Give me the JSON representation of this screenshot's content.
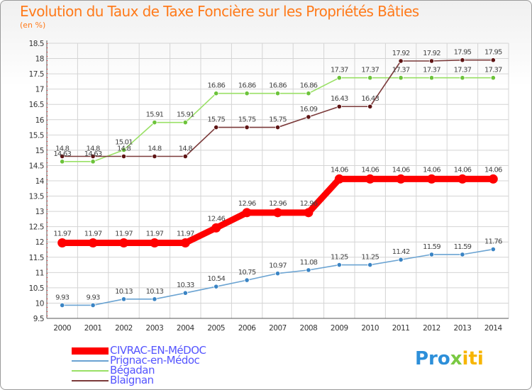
{
  "title": "Evolution du Taux de Taxe Foncière sur les Propriétés Bâties",
  "unit": "(en %)",
  "logo": {
    "p1": "Pro",
    "p2": "x",
    "p3": "iti"
  },
  "chart_data": {
    "type": "line",
    "title": "Evolution du Taux de Taxe Foncière sur les Propriétés Bâties",
    "ylabel": "(en %)",
    "xlabel": "",
    "x": [
      2000,
      2001,
      2002,
      2003,
      2004,
      2005,
      2006,
      2007,
      2008,
      2009,
      2010,
      2011,
      2012,
      2013,
      2014
    ],
    "ylim": [
      9.5,
      18.5
    ],
    "ytick_step": 0.5,
    "yticks": [
      "9.5",
      "10",
      "10.5",
      "11",
      "11.5",
      "12",
      "12.5",
      "13",
      "13.5",
      "14",
      "14.5",
      "15",
      "15.5",
      "16",
      "16.5",
      "17",
      "17.5",
      "18",
      "18.5"
    ],
    "grid": true,
    "series": [
      {
        "name": "CIVRAC-EN-MéDOC",
        "color": "#ff0000",
        "marker": "#ff0000",
        "highlight": true,
        "values": [
          11.97,
          11.97,
          11.97,
          11.97,
          11.97,
          12.46,
          12.96,
          12.96,
          12.96,
          14.06,
          14.06,
          14.06,
          14.06,
          14.06,
          14.06
        ],
        "labels": [
          "11.97",
          "11.97",
          "11.97",
          "11.97",
          "11.97",
          "12.46",
          "12.96",
          "12.96",
          "12.96",
          "14.06",
          "14.06",
          "14.06",
          "14.06",
          "14.06",
          "14.06"
        ]
      },
      {
        "name": "Prignac-en-Médoc",
        "color": "#6aa3d2",
        "marker": "#3a84c4",
        "values": [
          9.93,
          9.93,
          10.13,
          10.13,
          10.33,
          10.54,
          10.75,
          10.97,
          11.08,
          11.25,
          11.25,
          11.42,
          11.59,
          11.59,
          11.76
        ],
        "labels": [
          "9.93",
          "9.93",
          "10.13",
          "10.13",
          "10.33",
          "10.54",
          "10.75",
          "10.97",
          "11.08",
          "11.25",
          "11.25",
          "11.42",
          "11.59",
          "11.59",
          "11.76"
        ]
      },
      {
        "name": "Bégadan",
        "color": "#99e065",
        "marker": "#6cc33a",
        "values": [
          14.63,
          14.63,
          15.01,
          15.91,
          15.91,
          16.86,
          16.86,
          16.86,
          16.86,
          17.37,
          17.37,
          17.37,
          17.37,
          17.37,
          17.37
        ],
        "labels": [
          "14.63",
          "14.63",
          "15.01",
          "15.91",
          "15.91",
          "16.86",
          "16.86",
          "16.86",
          "16.86",
          "17.37",
          "17.37",
          "17.37",
          "17.37",
          "17.37",
          "17.37"
        ]
      },
      {
        "name": "Blaignan",
        "color": "#7b3a3a",
        "marker": "#5e1414",
        "values": [
          14.8,
          14.8,
          14.8,
          14.8,
          14.8,
          15.75,
          15.75,
          15.75,
          16.09,
          16.43,
          16.43,
          17.92,
          17.92,
          17.95,
          17.95
        ],
        "labels": [
          "14.8",
          "14.8",
          "14.8",
          "14.8",
          "14.8",
          "15.75",
          "15.75",
          "15.75",
          "16.09",
          "16.43",
          "16.43",
          "17.92",
          "17.92",
          "17.95",
          "17.95"
        ]
      }
    ]
  }
}
